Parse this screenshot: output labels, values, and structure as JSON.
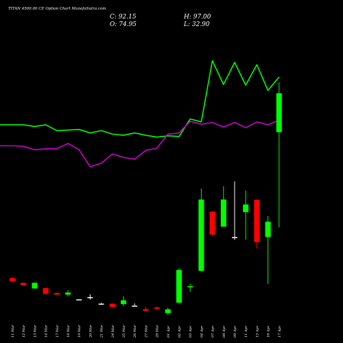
{
  "header": {
    "title": "TITAN 4500.00 CE Option Chart MunafaSutra.com",
    "close_label": "C: 92.15",
    "open_label": "O: 74.95",
    "high_label": "H: 97.00",
    "low_label": "L: 32.90"
  },
  "chart_data": {
    "type": "candlestick",
    "title": "TITAN 4500.00 CE Option Chart MunafaSutra.com",
    "categories": [
      "11 Mar",
      "12 Mar",
      "13 Mar",
      "14 Mar",
      "17 Mar",
      "18 Mar",
      "19 Mar",
      "20 Mar",
      "21 Mar",
      "24 Mar",
      "25 Mar",
      "26 Mar",
      "27 Mar",
      "28 Mar",
      "01 Apr",
      "02 Apr",
      "03 Apr",
      "04 Apr",
      "07 Apr",
      "08 Apr",
      "09 Apr",
      "11 Apr",
      "15 Apr",
      "16 Apr",
      "17 Apr"
    ],
    "candles": [
      {
        "o": 10.5,
        "h": 10.8,
        "l": 8.6,
        "c": 9.0
      },
      {
        "o": 8.4,
        "h": 8.5,
        "l": 7.2,
        "c": 7.3
      },
      {
        "o": 5.9,
        "h": 8.6,
        "l": 5.8,
        "c": 8.4
      },
      {
        "o": 6.1,
        "h": 6.2,
        "l": 3.4,
        "c": 3.5
      },
      {
        "o": 3.9,
        "h": 4.0,
        "l": 2.9,
        "c": 3.2
      },
      {
        "o": 3.2,
        "h": 5.1,
        "l": 2.4,
        "c": 4.1
      },
      {
        "o": 1.1,
        "h": 1.1,
        "l": 0.9,
        "c": 1.0
      },
      {
        "o": 2.1,
        "h": 3.3,
        "l": 1.0,
        "c": 2.0
      },
      {
        "o": -0.8,
        "h": -0.4,
        "l": -1.4,
        "c": -1.0
      },
      {
        "o": -0.8,
        "h": -0.7,
        "l": -2.4,
        "c": -2.3
      },
      {
        "o": -1.0,
        "h": 2.5,
        "l": -1.9,
        "c": 0.7
      },
      {
        "o": -1.7,
        "h": -0.7,
        "l": -1.8,
        "c": -1.9
      },
      {
        "o": -3.2,
        "h": -2.3,
        "l": -4.2,
        "c": -4.0
      },
      {
        "o": -2.5,
        "h": -2.1,
        "l": -3.3,
        "c": -3.1
      },
      {
        "o": -5.0,
        "h": -2.6,
        "l": -5.9,
        "c": -3.3
      },
      {
        "o": -0.4,
        "h": 14.9,
        "l": -0.6,
        "c": 14.1
      },
      {
        "o": 6.4,
        "h": 8.0,
        "l": 4.4,
        "c": 6.9
      },
      {
        "o": 13.7,
        "h": 50.0,
        "l": 13.4,
        "c": 45.2
      },
      {
        "o": 39.8,
        "h": 40.1,
        "l": 29.4,
        "c": 29.7
      },
      {
        "o": 33.2,
        "h": 51.1,
        "l": 33.1,
        "c": 45.2
      },
      {
        "o": 28.6,
        "h": 53.2,
        "l": 27.4,
        "c": 28.6
      },
      {
        "o": 39.6,
        "h": 49.1,
        "l": 27.5,
        "c": 43.0
      },
      {
        "o": 45.1,
        "h": 45.2,
        "l": 23.5,
        "c": 26.4
      },
      {
        "o": 28.6,
        "h": 37.9,
        "l": 7.9,
        "c": 35.4
      },
      {
        "o": 74.95,
        "h": 97.0,
        "l": 32.9,
        "c": 92.15
      }
    ],
    "overlays": [
      {
        "color": "#00ff00",
        "values": [
          86,
          86,
          83,
          86,
          76,
          77,
          78,
          72,
          76,
          70,
          68,
          72,
          68,
          65,
          67,
          66,
          96,
          91,
          196,
          155,
          193,
          154,
          189,
          145,
          168
        ]
      },
      {
        "color": "#cc00cc",
        "values": [
          50,
          49,
          43,
          45,
          45,
          54,
          43,
          14,
          20,
          36,
          30,
          27,
          42,
          46,
          70,
          72,
          92,
          87,
          90,
          82,
          90,
          81,
          91,
          86,
          94
        ]
      }
    ]
  },
  "colors": {
    "background": "#000000",
    "up": "#00ff00",
    "down": "#ff0000",
    "neutral": "#ffffff"
  }
}
